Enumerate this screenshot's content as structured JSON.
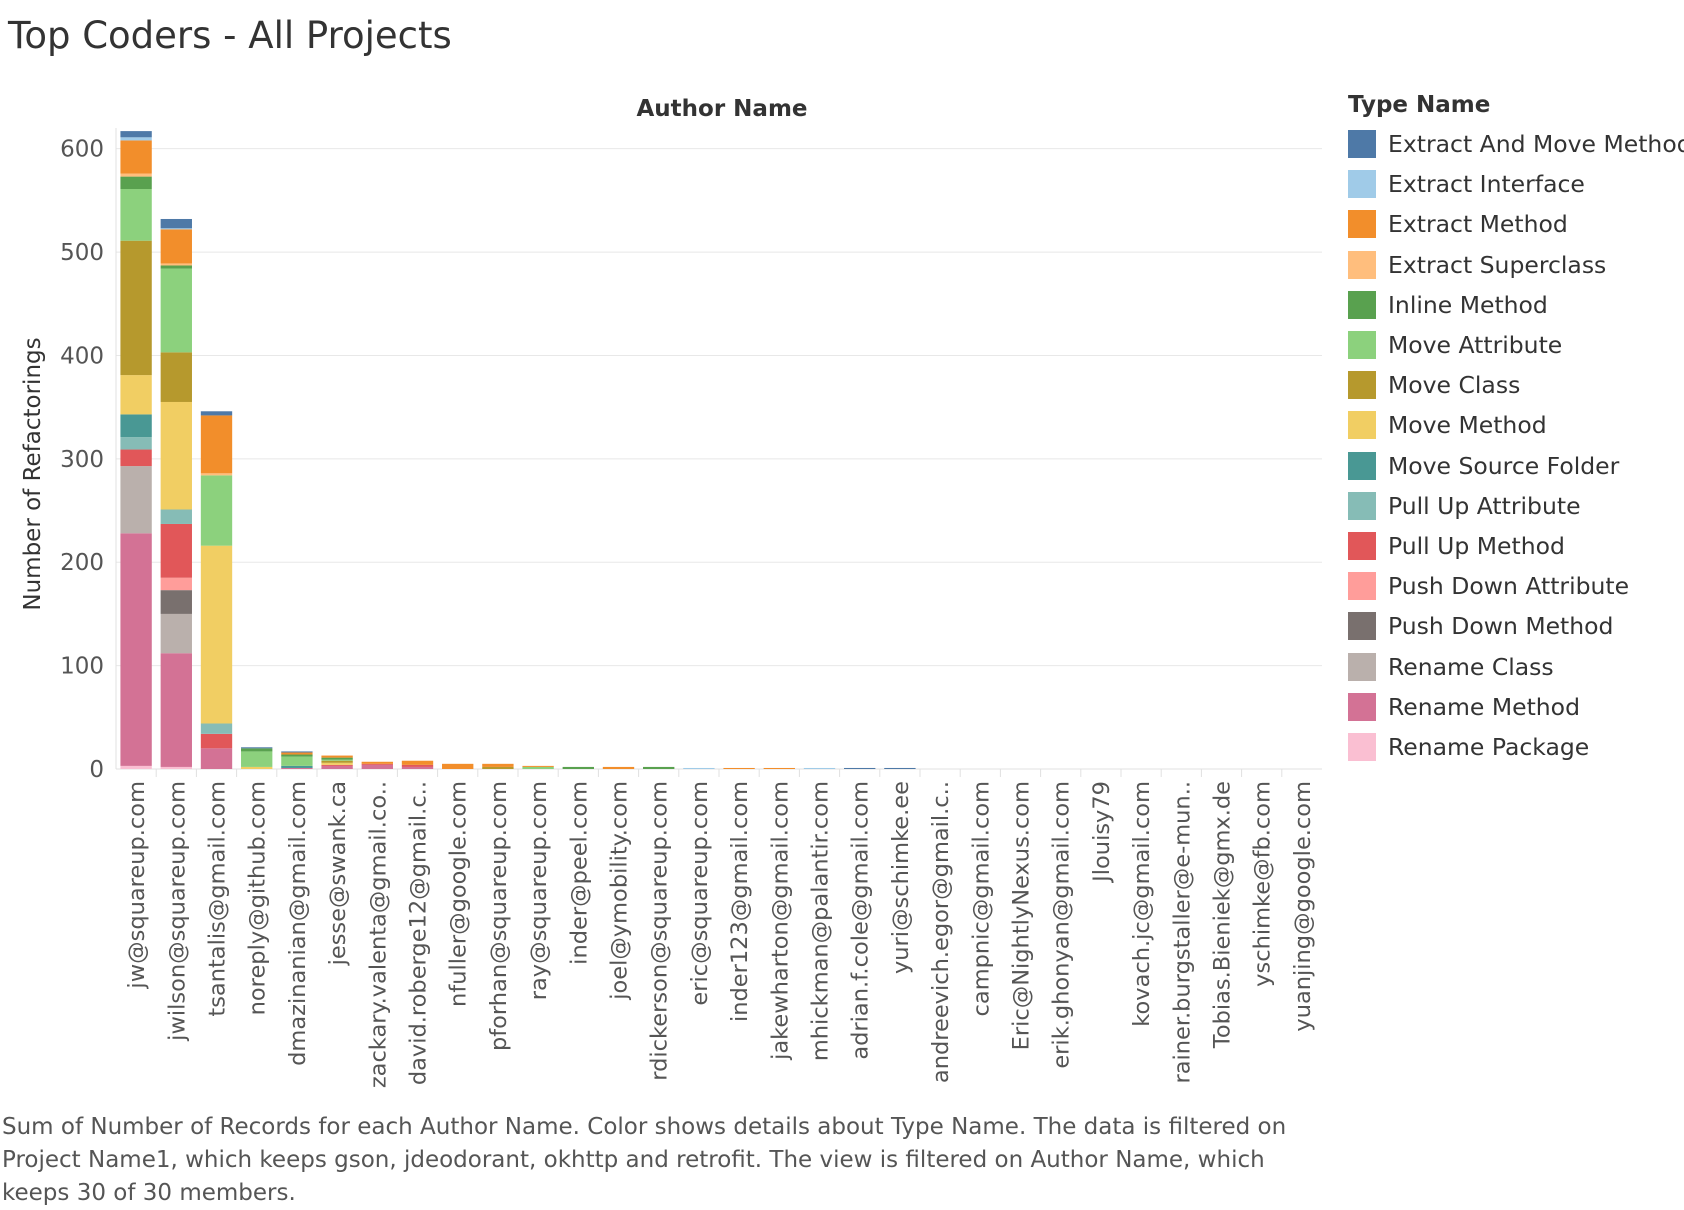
{
  "page": {
    "title": "Top Coders - All Projects",
    "caption": "Sum of Number of Records for each Author Name.  Color shows details about Type Name. The data is filtered on Project Name1, which keeps gson, jdeodorant, okhttp and retrofit. The view is filtered on Author Name, which keeps 30 of 30 members."
  },
  "chart_data": {
    "type": "bar",
    "stacked": true,
    "title": "Author Name",
    "xlabel": "",
    "ylabel": "Number of Refactorings",
    "ylim": [
      0,
      620
    ],
    "yticks": [
      0,
      100,
      200,
      300,
      400,
      500,
      600
    ],
    "grid": true,
    "legend": {
      "title": "Type Name",
      "position": "right"
    },
    "categories": [
      "jw@squareup.com",
      "jwilson@squareup.com",
      "tsantalis@gmail.com",
      "noreply@github.com",
      "dmazinanian@gmail.com",
      "jesse@swank.ca",
      "zackary.valenta@gmail.co..",
      "david.roberge12@gmail.c..",
      "nfuller@google.com",
      "pforhan@squareup.com",
      "ray@squareup.com",
      "inder@peel.com",
      "joel@ymobility.com",
      "rdickerson@squareup.com",
      "eric@squareup.com",
      "inder123@gmail.com",
      "jakewharton@gmail.com",
      "mhickman@palantir.com",
      "adrian.f.cole@gmail.com",
      "yuri@schimke.ee",
      "andreevich.egor@gmail.c..",
      "campnic@gmail.com",
      "Eric@NightlyNexus.com",
      "erik.ghonyan@gmail.com",
      "Jlouisy79",
      "kovach.jc@gmail.com",
      "rainer.burgstaller@e-mun..",
      "Tobias.Bieniek@gmx.de",
      "yschimke@fb.com",
      "yuanjing@google.com"
    ],
    "series": [
      {
        "name": "Rename Package",
        "color": "#FABFD2",
        "values": [
          3,
          2,
          0,
          0,
          0,
          0,
          0,
          0,
          0,
          0,
          0,
          0,
          0,
          0,
          0,
          0,
          0,
          0,
          0,
          0,
          0,
          0,
          0,
          0,
          0,
          0,
          0,
          0,
          0,
          0
        ]
      },
      {
        "name": "Rename Method",
        "color": "#D37295",
        "values": [
          225,
          110,
          20,
          0,
          1,
          3,
          4,
          2,
          0,
          0,
          0,
          0,
          0,
          0,
          0,
          0,
          0,
          0,
          0,
          0,
          0,
          0,
          0,
          0,
          0,
          0,
          0,
          0,
          0,
          0
        ]
      },
      {
        "name": "Rename Class",
        "color": "#BAB0AC",
        "values": [
          65,
          38,
          0,
          0,
          0,
          0,
          0,
          0,
          0,
          0,
          0,
          0,
          0,
          0,
          0,
          0,
          0,
          0,
          0,
          0,
          0,
          0,
          0,
          0,
          0,
          0,
          0,
          0,
          0,
          0
        ]
      },
      {
        "name": "Push Down Method",
        "color": "#79706E",
        "values": [
          0,
          23,
          0,
          0,
          0,
          0,
          0,
          0,
          0,
          0,
          0,
          0,
          0,
          0,
          0,
          0,
          0,
          0,
          0,
          0,
          0,
          0,
          0,
          0,
          0,
          0,
          0,
          0,
          0,
          0
        ]
      },
      {
        "name": "Push Down Attribute",
        "color": "#FF9D9A",
        "values": [
          0,
          12,
          0,
          0,
          0,
          0,
          0,
          0,
          0,
          0,
          0,
          0,
          0,
          0,
          0,
          0,
          0,
          0,
          0,
          0,
          0,
          0,
          0,
          0,
          0,
          0,
          0,
          0,
          0,
          0
        ]
      },
      {
        "name": "Pull Up Method",
        "color": "#E15759",
        "values": [
          16,
          52,
          14,
          0,
          0,
          1,
          1,
          2,
          0,
          0,
          0,
          0,
          0,
          0,
          0,
          0,
          0,
          0,
          0,
          0,
          0,
          0,
          0,
          0,
          0,
          0,
          0,
          0,
          0,
          0
        ]
      },
      {
        "name": "Pull Up Attribute",
        "color": "#86BCB6",
        "values": [
          12,
          14,
          10,
          0,
          0,
          0,
          0,
          0,
          0,
          0,
          0,
          0,
          0,
          0,
          0,
          0,
          0,
          0,
          0,
          0,
          0,
          0,
          0,
          0,
          0,
          0,
          0,
          0,
          0,
          0
        ]
      },
      {
        "name": "Move Source Folder",
        "color": "#499894",
        "values": [
          22,
          0,
          0,
          0,
          2,
          0,
          0,
          0,
          0,
          0,
          0,
          0,
          0,
          0,
          0,
          0,
          0,
          0,
          0,
          0,
          0,
          0,
          0,
          0,
          0,
          0,
          0,
          0,
          0,
          0
        ]
      },
      {
        "name": "Move Method",
        "color": "#F1CE63",
        "values": [
          38,
          104,
          172,
          2,
          0,
          2,
          0,
          0,
          0,
          0,
          0,
          0,
          0,
          0,
          0,
          0,
          0,
          0,
          0,
          0,
          0,
          0,
          0,
          0,
          0,
          0,
          0,
          0,
          0,
          0
        ]
      },
      {
        "name": "Move Class",
        "color": "#B6992D",
        "values": [
          130,
          48,
          0,
          0,
          0,
          2,
          0,
          0,
          0,
          2,
          0,
          0,
          0,
          0,
          0,
          0,
          0,
          0,
          0,
          0,
          0,
          0,
          0,
          0,
          0,
          0,
          0,
          0,
          0,
          0
        ]
      },
      {
        "name": "Move Attribute",
        "color": "#8CD17D",
        "values": [
          50,
          81,
          68,
          15,
          9,
          1,
          0,
          0,
          0,
          0,
          2,
          0,
          0,
          0,
          0,
          0,
          0,
          0,
          0,
          0,
          0,
          0,
          0,
          0,
          0,
          0,
          0,
          0,
          0,
          0
        ]
      },
      {
        "name": "Inline Method",
        "color": "#59A14F",
        "values": [
          12,
          3,
          0,
          3,
          2,
          2,
          0,
          0,
          0,
          0,
          0,
          2,
          0,
          2,
          0,
          0,
          0,
          0,
          0,
          0,
          0,
          0,
          0,
          0,
          0,
          0,
          0,
          0,
          0,
          0
        ]
      },
      {
        "name": "Extract Superclass",
        "color": "#FFBE7D",
        "values": [
          3,
          2,
          2,
          0,
          0,
          0,
          0,
          0,
          0,
          0,
          0,
          0,
          0,
          0,
          0,
          0,
          0,
          0,
          0,
          0,
          0,
          0,
          0,
          0,
          0,
          0,
          0,
          0,
          0,
          0
        ]
      },
      {
        "name": "Extract Method",
        "color": "#F28E2B",
        "values": [
          32,
          33,
          56,
          0,
          2,
          2,
          2,
          4,
          5,
          3,
          1,
          0,
          2,
          0,
          0,
          1,
          1,
          0,
          0,
          0,
          0,
          0,
          0,
          0,
          0,
          0,
          0,
          0,
          0,
          0
        ]
      },
      {
        "name": "Extract Interface",
        "color": "#A0CBE8",
        "values": [
          3,
          1,
          0,
          0,
          0,
          0,
          0,
          0,
          0,
          0,
          0,
          0,
          0,
          0,
          1,
          0,
          0,
          1,
          0,
          0,
          0,
          0,
          0,
          0,
          0,
          0,
          0,
          0,
          0,
          0
        ]
      },
      {
        "name": "Extract And Move Method",
        "color": "#4E79A7",
        "values": [
          6,
          9,
          4,
          1,
          1,
          0,
          0,
          0,
          0,
          0,
          0,
          0,
          0,
          0,
          0,
          0,
          0,
          0,
          1,
          1,
          0,
          0,
          0,
          0,
          0,
          0,
          0,
          0,
          0,
          0
        ]
      }
    ]
  },
  "legend_items": [
    {
      "label": "Extract And Move Method",
      "color": "#4E79A7"
    },
    {
      "label": "Extract Interface",
      "color": "#A0CBE8"
    },
    {
      "label": "Extract Method",
      "color": "#F28E2B"
    },
    {
      "label": "Extract Superclass",
      "color": "#FFBE7D"
    },
    {
      "label": "Inline Method",
      "color": "#59A14F"
    },
    {
      "label": "Move Attribute",
      "color": "#8CD17D"
    },
    {
      "label": "Move Class",
      "color": "#B6992D"
    },
    {
      "label": "Move Method",
      "color": "#F1CE63"
    },
    {
      "label": "Move Source Folder",
      "color": "#499894"
    },
    {
      "label": "Pull Up Attribute",
      "color": "#86BCB6"
    },
    {
      "label": "Pull Up Method",
      "color": "#E15759"
    },
    {
      "label": "Push Down Attribute",
      "color": "#FF9D9A"
    },
    {
      "label": "Push Down Method",
      "color": "#79706E"
    },
    {
      "label": "Rename Class",
      "color": "#BAB0AC"
    },
    {
      "label": "Rename Method",
      "color": "#D37295"
    },
    {
      "label": "Rename Package",
      "color": "#FABFD2"
    }
  ]
}
